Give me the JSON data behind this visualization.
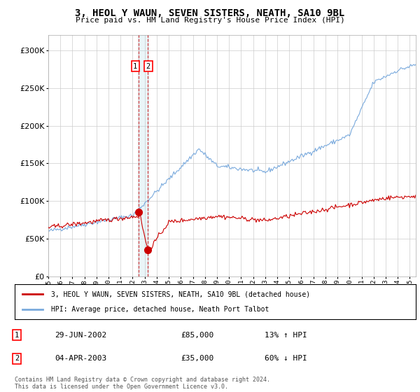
{
  "title": "3, HEOL Y WAUN, SEVEN SISTERS, NEATH, SA10 9BL",
  "subtitle": "Price paid vs. HM Land Registry's House Price Index (HPI)",
  "legend_label_red": "3, HEOL Y WAUN, SEVEN SISTERS, NEATH, SA10 9BL (detached house)",
  "legend_label_blue": "HPI: Average price, detached house, Neath Port Talbot",
  "transaction1_date": "29-JUN-2002",
  "transaction1_price": 85000,
  "transaction1_hpi": "13% ↑ HPI",
  "transaction1_label": "1",
  "transaction2_date": "04-APR-2003",
  "transaction2_price": 35000,
  "transaction2_hpi": "60% ↓ HPI",
  "transaction2_label": "2",
  "footer": "Contains HM Land Registry data © Crown copyright and database right 2024.\nThis data is licensed under the Open Government Licence v3.0.",
  "xlim_start": 1995.0,
  "xlim_end": 2025.5,
  "ylim_bottom": 0,
  "ylim_top": 320000,
  "red_color": "#cc0000",
  "blue_color": "#7aaadd",
  "background_color": "#ffffff",
  "grid_color": "#cccccc"
}
